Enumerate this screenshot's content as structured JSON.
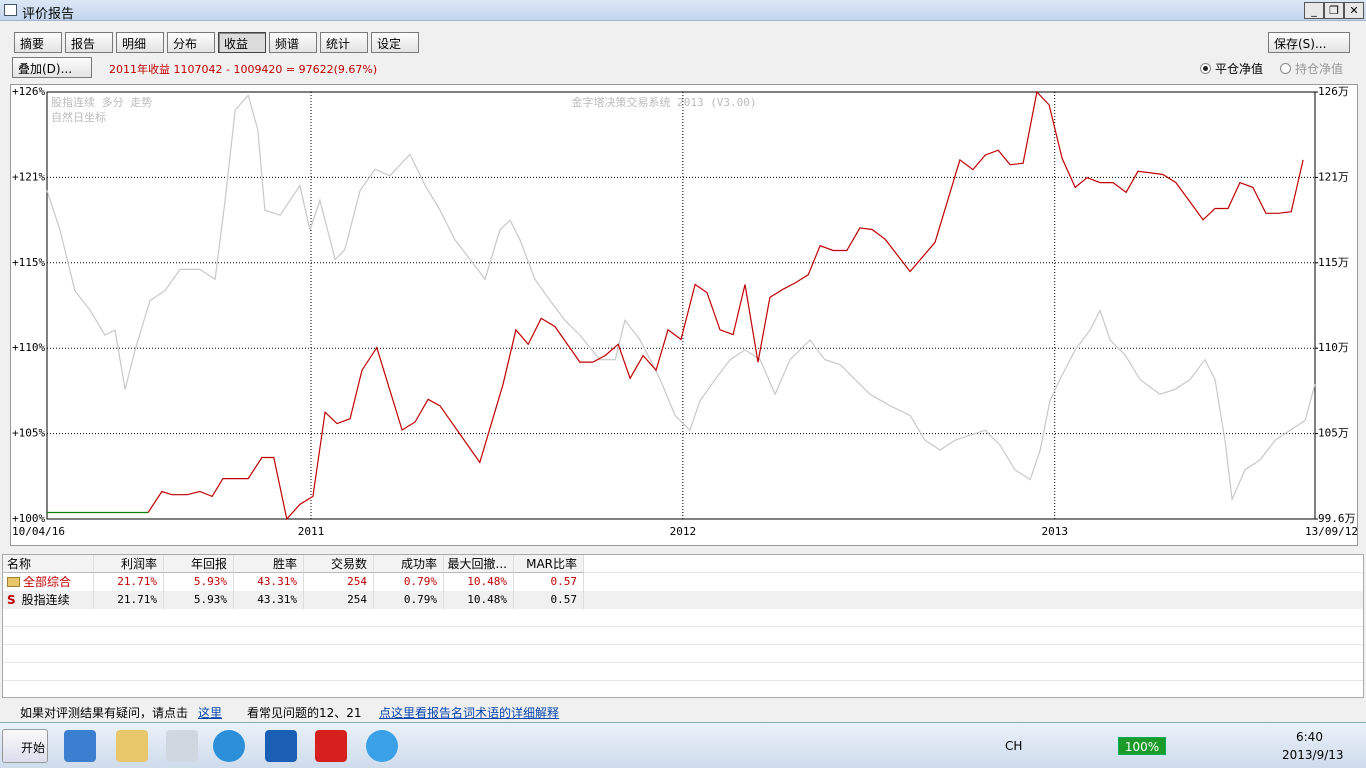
{
  "window": {
    "title": "评价报告"
  },
  "tabs": [
    "摘要",
    "报告",
    "明细",
    "分布",
    "收益",
    "频谱",
    "统计",
    "设定"
  ],
  "active_tab_index": 4,
  "buttons": {
    "save": "保存(S)...",
    "overlay": "叠加(D)..."
  },
  "summary": "2011年收益 1107042 - 1009420 = 97622(9.67%)",
  "radios": [
    {
      "label": "平仓净值",
      "checked": true
    },
    {
      "label": "持仓净值",
      "checked": false
    }
  ],
  "chart_data": {
    "type": "line",
    "annotations": [
      "股指连续 多分 走势",
      "自然日坐标"
    ],
    "watermark": "金字塔决策交易系统 2013 (V3.00)",
    "grid": true,
    "xlim": [
      2010.29,
      2013.7
    ],
    "xticks": [
      {
        "value": 2010.29,
        "label": "10/04/16"
      },
      2011,
      2012,
      2013,
      {
        "value": 2013.7,
        "label": "13/09/12"
      }
    ],
    "ylim": [
      100,
      126
    ],
    "yticks": [
      {
        "value": 100,
        "label": "+100%"
      },
      {
        "value": 105.2,
        "label": "+105%"
      },
      {
        "value": 110.4,
        "label": "+110%"
      },
      {
        "value": 115.6,
        "label": "+115%"
      },
      {
        "value": 120.8,
        "label": "+121%"
      },
      {
        "value": 126,
        "label": "+126%"
      }
    ],
    "y2lim": [
      99.6,
      126
    ],
    "y2ticks": [
      {
        "value": 99.6,
        "label": "99.6万"
      },
      {
        "value": 104.88,
        "label": "105万"
      },
      {
        "value": 110.16,
        "label": "110万"
      },
      {
        "value": 115.44,
        "label": "115万"
      },
      {
        "value": 120.72,
        "label": "121万"
      },
      {
        "value": 126,
        "label": "126万"
      }
    ],
    "series": [
      {
        "color": "#c8c8c8",
        "axis": "y",
        "x": [
          2010.29,
          2010.325,
          2010.365,
          2010.406,
          2010.446,
          2010.473,
          2010.5,
          2010.527,
          2010.567,
          2010.607,
          2010.648,
          2010.701,
          2010.742,
          2010.769,
          2010.796,
          2010.831,
          2010.857,
          2010.876,
          2010.917,
          2010.97,
          2010.997,
          2011.024,
          2011.065,
          2011.091,
          2011.132,
          2011.172,
          2011.212,
          2011.266,
          2011.307,
          2011.347,
          2011.387,
          2011.428,
          2011.468,
          2011.508,
          2011.535,
          2011.562,
          2011.602,
          2011.643,
          2011.683,
          2011.723,
          2011.777,
          2011.818,
          2011.844,
          2011.885,
          2011.939,
          2011.979,
          2012.019,
          2012.046,
          2012.087,
          2012.127,
          2012.167,
          2012.208,
          2012.248,
          2012.288,
          2012.342,
          2012.382,
          2012.423,
          2012.463,
          2012.503,
          2012.557,
          2012.611,
          2012.651,
          2012.692,
          2012.732,
          2012.772,
          2012.813,
          2012.853,
          2012.893,
          2012.934,
          2012.961,
          2012.987,
          2013.014,
          2013.055,
          2013.095,
          2013.122,
          2013.149,
          2013.189,
          2013.229,
          2013.283,
          2013.324,
          2013.364,
          2013.404,
          2013.431,
          2013.458,
          2013.477,
          2013.512,
          2013.552,
          2013.593,
          2013.633,
          2013.673,
          2013.7
        ],
        "values": [
          120.0,
          117.6,
          113.9,
          112.7,
          111.2,
          111.5,
          107.9,
          110.3,
          113.3,
          113.9,
          115.2,
          115.2,
          114.6,
          119.4,
          124.9,
          125.8,
          123.7,
          118.8,
          118.5,
          120.3,
          117.6,
          119.4,
          115.8,
          116.4,
          120.0,
          121.3,
          120.9,
          122.2,
          120.3,
          118.8,
          117.0,
          115.8,
          114.6,
          117.6,
          118.2,
          117.0,
          114.6,
          113.3,
          112.1,
          111.2,
          109.7,
          109.7,
          112.1,
          110.9,
          108.5,
          106.3,
          105.4,
          107.2,
          108.5,
          109.7,
          110.3,
          109.7,
          107.6,
          109.7,
          110.9,
          109.7,
          109.4,
          108.5,
          107.6,
          106.9,
          106.3,
          104.8,
          104.2,
          104.8,
          105.1,
          105.4,
          104.5,
          103.0,
          102.4,
          104.2,
          107.2,
          108.5,
          110.3,
          111.5,
          112.7,
          110.9,
          110.0,
          108.5,
          107.6,
          107.9,
          108.5,
          109.7,
          108.5,
          104.8,
          101.2,
          103.0,
          103.6,
          104.8,
          105.4,
          106.0,
          108.2
        ]
      },
      {
        "color": "#008000",
        "axis": "y2",
        "x": [
          2010.29,
          2010.562
        ],
        "values": [
          100.0,
          100.0
        ]
      },
      {
        "color": "#c00000",
        "axis": "y2",
        "x": [
          2010.562,
          2010.599,
          2010.626,
          2010.667,
          2010.701,
          2010.734,
          2010.763,
          2010.831,
          2010.868,
          2010.9,
          2010.935,
          2010.97,
          2011.005,
          2011.038,
          2011.07,
          2011.105,
          2011.137,
          2011.177,
          2011.245,
          2011.28,
          2011.315,
          2011.347,
          2011.454,
          2011.516,
          2011.551,
          2011.584,
          2011.619,
          2011.656,
          2011.723,
          2011.758,
          2011.791,
          2011.826,
          2011.858,
          2011.893,
          2011.928,
          2011.96,
          2011.995,
          2012.033,
          2012.065,
          2012.1,
          2012.135,
          2012.167,
          2012.202,
          2012.234,
          2012.269,
          2012.302,
          2012.337,
          2012.369,
          2012.404,
          2012.441,
          2012.476,
          2012.509,
          2012.544,
          2012.611,
          2012.678,
          2012.745,
          2012.78,
          2012.813,
          2012.848,
          2012.88,
          2012.915,
          2012.952,
          2012.985,
          2013.02,
          2013.055,
          2013.087,
          2013.122,
          2013.157,
          2013.192,
          2013.224,
          2013.259,
          2013.291,
          2013.326,
          2013.364,
          2013.399,
          2013.431,
          2013.466,
          2013.498,
          2013.533,
          2013.568,
          2013.601,
          2013.636,
          2013.668
        ],
        "values": [
          100.0,
          101.3,
          101.1,
          101.1,
          101.3,
          101.0,
          102.1,
          102.1,
          103.4,
          103.4,
          99.6,
          100.5,
          101.0,
          106.2,
          105.5,
          105.8,
          108.8,
          110.2,
          105.1,
          105.6,
          107.0,
          106.6,
          103.1,
          107.9,
          111.3,
          110.4,
          112.0,
          111.5,
          109.3,
          109.3,
          109.7,
          110.4,
          108.3,
          109.7,
          108.8,
          111.3,
          110.7,
          114.1,
          113.6,
          111.3,
          111.0,
          114.1,
          109.3,
          113.3,
          113.8,
          114.2,
          114.7,
          116.5,
          116.2,
          116.2,
          117.6,
          117.5,
          116.9,
          114.9,
          116.7,
          121.8,
          121.2,
          122.1,
          122.4,
          121.5,
          121.6,
          126.0,
          125.2,
          121.9,
          120.1,
          120.7,
          120.4,
          120.4,
          119.8,
          121.1,
          121.0,
          120.9,
          120.4,
          119.2,
          118.1,
          118.8,
          118.8,
          120.4,
          120.1,
          118.5,
          118.5,
          118.6,
          121.8
        ]
      }
    ]
  },
  "table": {
    "columns": [
      "名称",
      "利润率",
      "年回报",
      "胜率",
      "交易数",
      "成功率",
      "最大回撤...",
      "MAR比率"
    ],
    "rows": [
      [
        "全部综合",
        "21.71%",
        "5.93%",
        "43.31%",
        "254",
        "0.79%",
        "10.48%",
        "0.57"
      ],
      [
        "股指连续",
        "21.71%",
        "5.93%",
        "43.31%",
        "254",
        "0.79%",
        "10.48%",
        "0.57"
      ]
    ],
    "marker": "S"
  },
  "footer": {
    "question": "如果对评测结果有疑问，请点击",
    "link": "这里",
    "faq": "看常见问题的12、21",
    "glossary": "点这里看报告名词术语的详细解释"
  },
  "taskbar": {
    "start": "开始",
    "lang": "CH",
    "battery": "100%",
    "time": "6:40",
    "date": "2013/9/13"
  }
}
